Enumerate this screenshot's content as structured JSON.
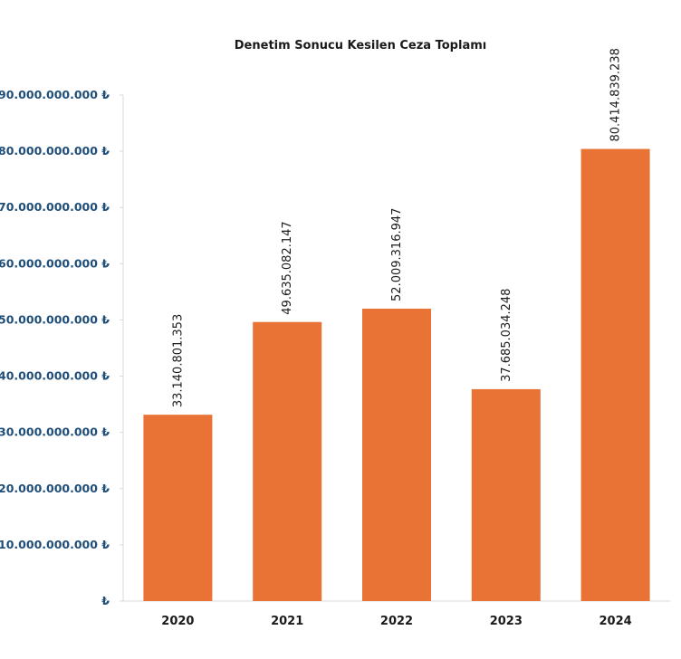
{
  "chart_data": {
    "type": "bar",
    "title": "Denetim Sonucu Kesilen Ceza Toplamı",
    "xlabel": "",
    "ylabel": "",
    "categories": [
      "2020",
      "2021",
      "2022",
      "2023",
      "2024"
    ],
    "values": [
      33140801353,
      49635082147,
      52009316947,
      37685034248,
      80414839238
    ],
    "data_labels": [
      "33.140.801.353",
      "49.635.082.147",
      "52.009.316.947",
      "37.685.034.248",
      "80.414.839.238"
    ],
    "ylim": [
      0,
      90000000000
    ],
    "y_ticks": [
      0,
      10000000000,
      20000000000,
      30000000000,
      40000000000,
      50000000000,
      60000000000,
      70000000000,
      80000000000,
      90000000000
    ],
    "y_tick_labels": [
      "₺",
      "10.000.000.000 ₺",
      "20.000.000.000 ₺",
      "30.000.000.000 ₺",
      "40.000.000.000 ₺",
      "50.000.000.000 ₺",
      "60.000.000.000 ₺",
      "70.000.000.000 ₺",
      "80.000.000.000 ₺",
      "90.000.000.000 ₺"
    ],
    "bar_color": "#e87335",
    "grid": false,
    "legend": "none"
  }
}
